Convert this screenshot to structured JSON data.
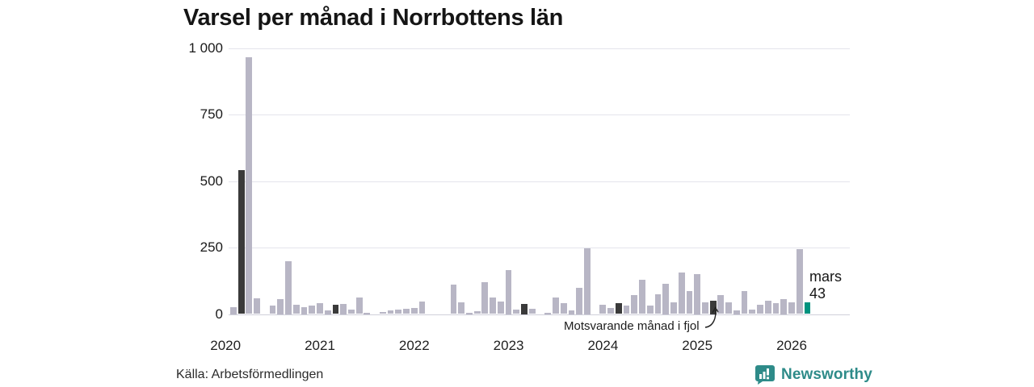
{
  "chart_data": {
    "type": "bar",
    "title": "Varsel per månad i Norrbottens län",
    "xlabel": "",
    "ylabel": "",
    "ylim": [
      0,
      1000
    ],
    "y_ticks": [
      0,
      250,
      500,
      750,
      1000
    ],
    "y_tick_labels": [
      "0",
      "250",
      "500",
      "750",
      "1 000"
    ],
    "x_tick_labels": [
      "2020",
      "2021",
      "2022",
      "2023",
      "2024",
      "2025",
      "2026"
    ],
    "grid": "horizontal",
    "bar_period": "month",
    "first_month": "januari 2020",
    "last_month": "mars 2026",
    "series_by_year": {
      "2020": [
        0,
        25,
        540,
        965,
        58,
        0,
        32,
        55,
        200,
        35,
        25,
        33
      ],
      "2021": [
        40,
        15,
        35,
        38,
        18,
        61,
        6,
        0,
        8,
        13,
        16,
        21
      ],
      "2022": [
        22,
        48,
        0,
        0,
        0,
        110,
        45,
        6,
        11,
        120,
        61,
        48
      ],
      "2023": [
        165,
        18,
        38,
        21,
        0,
        5,
        61,
        40,
        15,
        100,
        247,
        0
      ],
      "2024": [
        35,
        24,
        40,
        33,
        70,
        128,
        31,
        73,
        115,
        45,
        157,
        85
      ],
      "2025": [
        150,
        45,
        50,
        71,
        45,
        15,
        85,
        18,
        35,
        51,
        40,
        55
      ],
      "2026": [
        43,
        245,
        43
      ]
    },
    "highlight": {
      "month_label": "mars",
      "value_label": "43",
      "value": 43,
      "month": "mars 2026"
    },
    "annotation": {
      "text": "Motsvarande månad i fjol",
      "points_to": "mars 2025"
    },
    "legend_note": "mars each year shown dark; mars 2026 shown teal",
    "colors": {
      "bar": "#b8b6c5",
      "compare_bar": "#3a3a3a",
      "highlight_bar": "#00927e",
      "gridline": "#e4e4ec",
      "logo_teal": "#2e8b89"
    }
  },
  "footer": {
    "source": "Källa: Arbetsförmedlingen",
    "logo_text": "Newsworthy"
  }
}
